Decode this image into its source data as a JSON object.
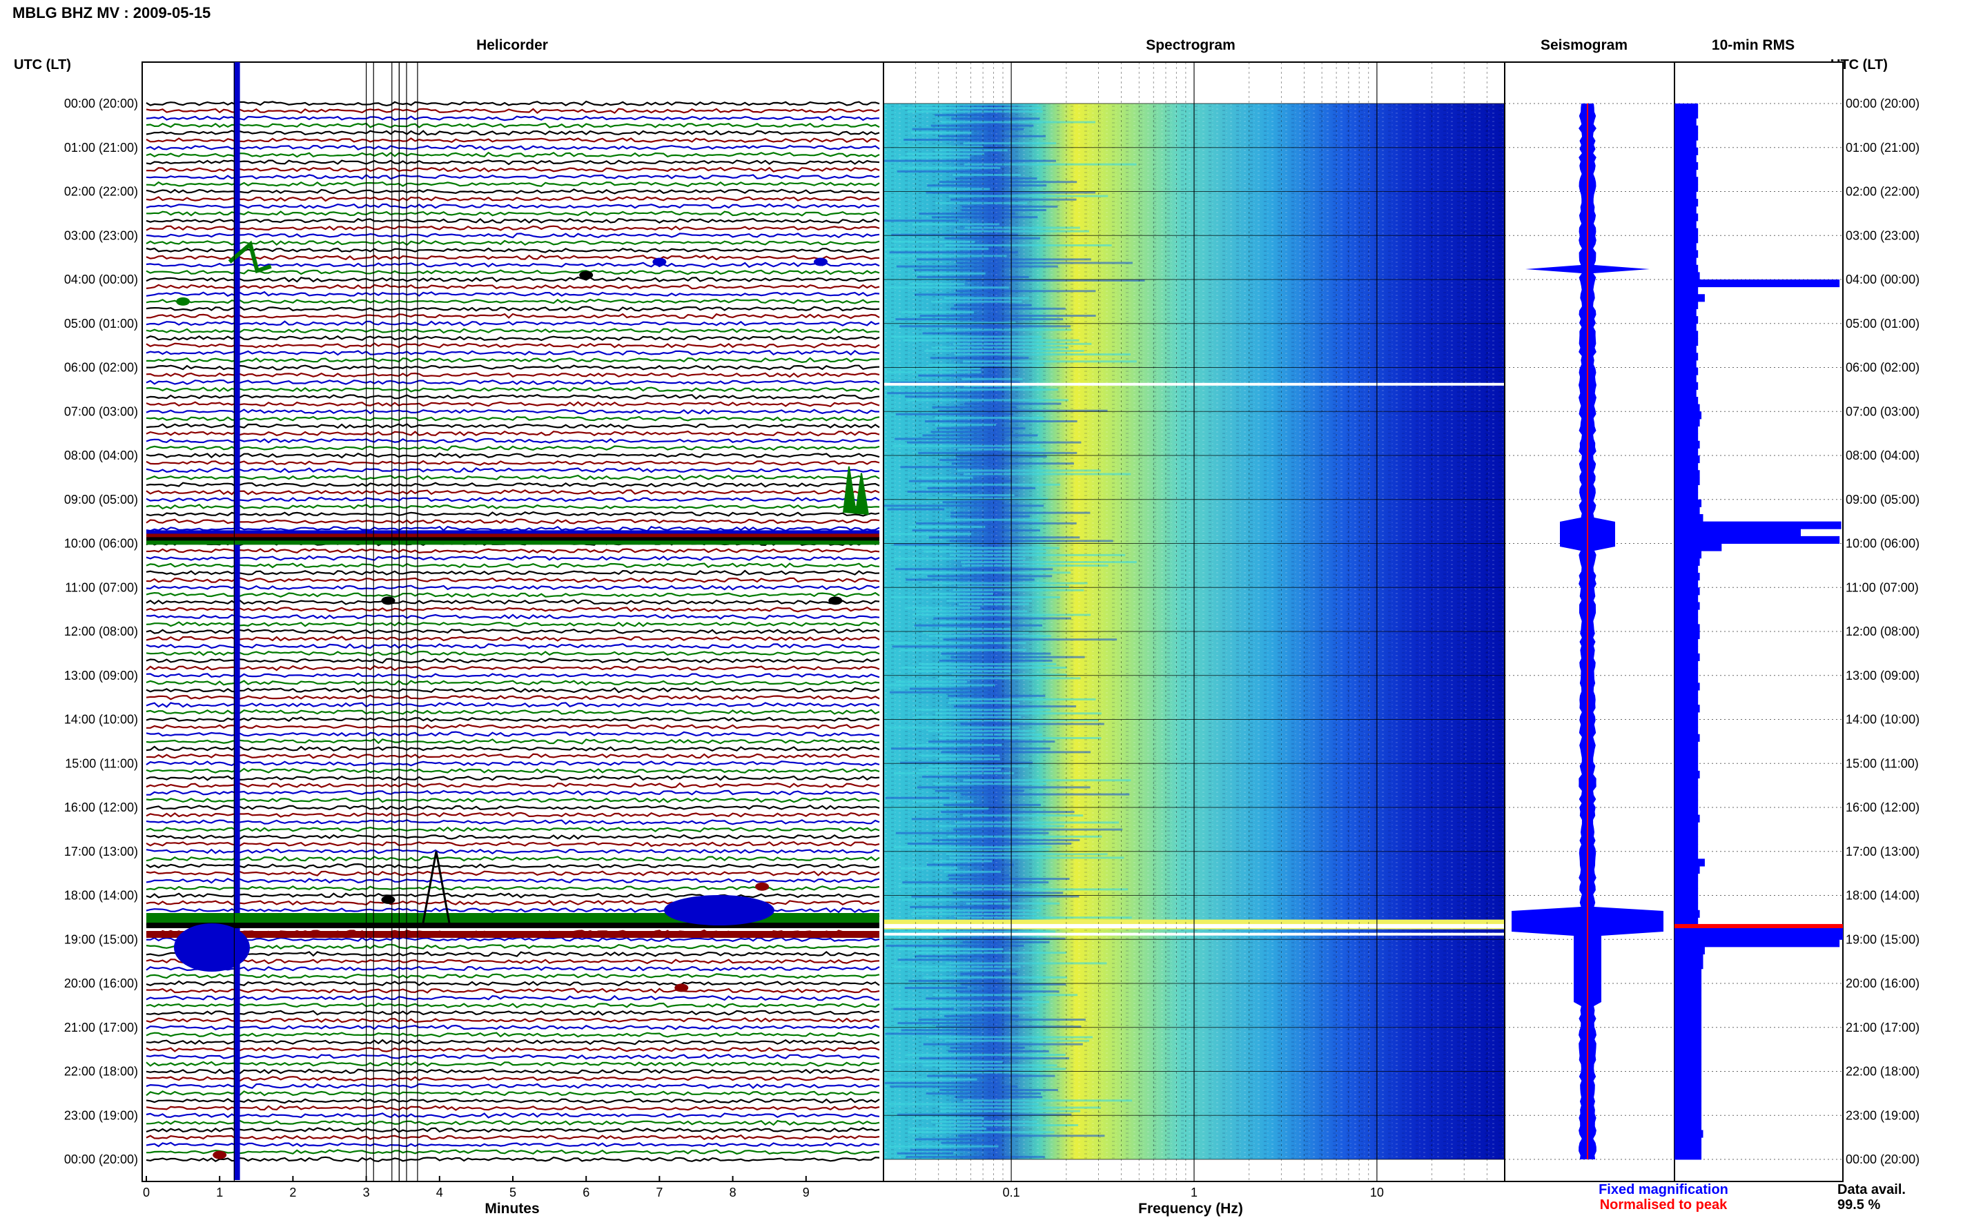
{
  "header": {
    "title": "MBLG BHZ MV : 2009-05-15",
    "time_axis_label_left": "UTC (LT)",
    "time_axis_label_right": "UTC (LT)"
  },
  "panels": {
    "helicorder": "Helicorder",
    "spectrogram": "Spectrogram",
    "seismogram": "Seismogram",
    "rms": "10-min RMS"
  },
  "footer": {
    "helicorder_xlabel": "Minutes",
    "spectrogram_xlabel": "Frequency (Hz)",
    "legend_fixed": "Fixed magnification",
    "legend_normalised": "Normalised to peak",
    "data_avail_label": "Data avail.",
    "data_avail_value": "99.5 %"
  },
  "colors": {
    "trace_cycle": [
      "#000000",
      "#8b0000",
      "#0000cc",
      "#007a00"
    ],
    "seismogram_fixed": "#0000ff",
    "seismogram_normalised": "#ff0000",
    "rms_bar": "#0000ff"
  },
  "chart_data": [
    {
      "type": "line",
      "panel": "helicorder",
      "xlabel": "Minutes",
      "x_ticks": [
        0,
        1,
        2,
        3,
        4,
        5,
        6,
        7,
        8,
        9
      ],
      "xlim": [
        0,
        10
      ],
      "y_ticks": [
        "00:00 (20:00)",
        "01:00 (21:00)",
        "02:00 (22:00)",
        "03:00 (23:00)",
        "04:00 (00:00)",
        "05:00 (01:00)",
        "06:00 (02:00)",
        "07:00 (03:00)",
        "08:00 (04:00)",
        "09:00 (05:00)",
        "10:00 (06:00)",
        "11:00 (07:00)",
        "12:00 (08:00)",
        "13:00 (09:00)",
        "14:00 (10:00)",
        "15:00 (11:00)",
        "16:00 (12:00)",
        "17:00 (13:00)",
        "18:00 (14:00)",
        "19:00 (15:00)",
        "20:00 (16:00)",
        "21:00 (17:00)",
        "22:00 (18:00)",
        "23:00 (19:00)",
        "00:00 (20:00)"
      ],
      "trace_minutes": 10,
      "rows_per_hour": 6
    },
    {
      "type": "heatmap",
      "panel": "spectrogram",
      "xlabel": "Frequency (Hz)",
      "x_scale": "log",
      "x_ticks": [
        0.1,
        1,
        10
      ],
      "xlim": [
        0.02,
        50
      ]
    },
    {
      "type": "line",
      "panel": "seismogram",
      "series": [
        {
          "name": "Fixed magnification"
        },
        {
          "name": "Normalised to peak"
        }
      ]
    },
    {
      "type": "bar",
      "panel": "rms",
      "orientation": "horizontal",
      "bins_per_hour": 6,
      "values": [
        0.14,
        0.14,
        0.13,
        0.14,
        0.14,
        0.13,
        0.14,
        0.13,
        0.14,
        0.13,
        0.14,
        0.14,
        0.13,
        0.14,
        0.13,
        0.14,
        0.13,
        0.14,
        0.14,
        0.13,
        0.14,
        0.13,
        0.14,
        0.15,
        0.98,
        0.14,
        0.18,
        0.14,
        0.13,
        0.14,
        0.13,
        0.14,
        0.14,
        0.13,
        0.14,
        0.13,
        0.14,
        0.13,
        0.14,
        0.13,
        0.14,
        0.15,
        0.16,
        0.15,
        0.14,
        0.14,
        0.15,
        0.14,
        0.15,
        0.14,
        0.15,
        0.15,
        0.14,
        0.14,
        0.16,
        0.15,
        0.17,
        0.99,
        0.75,
        0.98,
        0.28,
        0.16,
        0.15,
        0.14,
        0.15,
        0.14,
        0.15,
        0.14,
        0.15,
        0.14,
        0.14,
        0.15,
        0.15,
        0.14,
        0.14,
        0.15,
        0.14,
        0.14,
        0.14,
        0.15,
        0.14,
        0.14,
        0.15,
        0.14,
        0.14,
        0.14,
        0.15,
        0.14,
        0.14,
        0.14,
        0.14,
        0.15,
        0.14,
        0.14,
        0.14,
        0.14,
        0.14,
        0.15,
        0.14,
        0.14,
        0.14,
        0.14,
        0.14,
        0.18,
        0.15,
        0.14,
        0.14,
        0.14,
        0.14,
        0.14,
        0.15,
        0.14,
        1.0,
        1.0,
        0.98,
        0.18,
        0.17,
        0.17,
        0.16,
        0.16,
        0.16,
        0.16,
        0.16,
        0.16,
        0.16,
        0.16,
        0.16,
        0.16,
        0.16,
        0.16,
        0.16,
        0.16,
        0.16,
        0.16,
        0.16,
        0.16,
        0.16,
        0.16,
        0.16,
        0.16,
        0.17,
        0.16,
        0.16,
        0.16
      ]
    }
  ]
}
